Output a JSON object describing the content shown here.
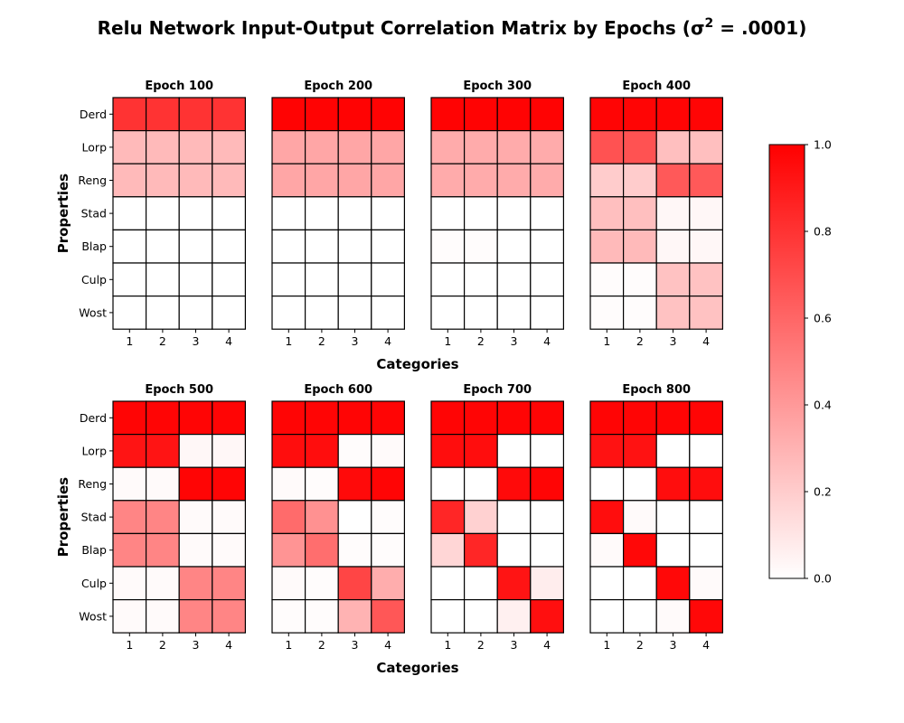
{
  "title": {
    "main": "Relu Network Input-Output Correlation Matrix by Epochs (σ",
    "sup": "2",
    "tail": " = .0001)"
  },
  "chart_data": {
    "type": "heatmap",
    "xlabel": "Categories",
    "ylabel": "Properties",
    "rows": [
      "Derd",
      "Lorp",
      "Reng",
      "Stad",
      "Blap",
      "Culp",
      "Wost"
    ],
    "cols": [
      "1",
      "2",
      "3",
      "4"
    ],
    "colorbar": {
      "range": [
        0,
        1
      ],
      "ticks": [
        "0.0",
        "0.2",
        "0.4",
        "0.6",
        "0.8",
        "1.0"
      ],
      "low_color": "#ffffff",
      "high_color": "#ff0000"
    },
    "panels": [
      {
        "title": "Epoch 100",
        "values": [
          [
            0.8,
            0.8,
            0.8,
            0.8
          ],
          [
            0.27,
            0.27,
            0.27,
            0.27
          ],
          [
            0.27,
            0.27,
            0.27,
            0.27
          ],
          [
            0,
            0,
            0,
            0
          ],
          [
            0,
            0,
            0,
            0
          ],
          [
            0,
            0,
            0,
            0
          ],
          [
            0,
            0,
            0,
            0
          ]
        ]
      },
      {
        "title": "Epoch 200",
        "values": [
          [
            0.99,
            0.99,
            0.99,
            0.99
          ],
          [
            0.35,
            0.35,
            0.35,
            0.35
          ],
          [
            0.35,
            0.35,
            0.35,
            0.35
          ],
          [
            0,
            0,
            0,
            0
          ],
          [
            0,
            0,
            0,
            0
          ],
          [
            0,
            0,
            0,
            0
          ],
          [
            0,
            0,
            0,
            0
          ]
        ]
      },
      {
        "title": "Epoch 300",
        "values": [
          [
            0.99,
            0.99,
            0.99,
            0.99
          ],
          [
            0.33,
            0.33,
            0.33,
            0.33
          ],
          [
            0.33,
            0.33,
            0.33,
            0.33
          ],
          [
            0,
            0,
            0,
            0
          ],
          [
            0.01,
            0.01,
            0,
            0
          ],
          [
            0,
            0,
            0,
            0
          ],
          [
            0,
            0,
            0,
            0
          ]
        ]
      },
      {
        "title": "Epoch 400",
        "values": [
          [
            0.98,
            0.98,
            0.98,
            0.98
          ],
          [
            0.68,
            0.68,
            0.25,
            0.25
          ],
          [
            0.2,
            0.2,
            0.65,
            0.65
          ],
          [
            0.25,
            0.25,
            0.03,
            0.03
          ],
          [
            0.27,
            0.27,
            0.03,
            0.03
          ],
          [
            0.01,
            0.01,
            0.24,
            0.24
          ],
          [
            0.01,
            0.01,
            0.24,
            0.24
          ]
        ]
      },
      {
        "title": "Epoch 500",
        "values": [
          [
            0.98,
            0.98,
            0.98,
            0.98
          ],
          [
            0.92,
            0.92,
            0.03,
            0.03
          ],
          [
            0.02,
            0.02,
            0.98,
            0.98
          ],
          [
            0.48,
            0.48,
            0.02,
            0.02
          ],
          [
            0.48,
            0.48,
            0.02,
            0.02
          ],
          [
            0.02,
            0.02,
            0.48,
            0.48
          ],
          [
            0.02,
            0.02,
            0.48,
            0.48
          ]
        ]
      },
      {
        "title": "Epoch 600",
        "values": [
          [
            0.98,
            0.98,
            0.98,
            0.98
          ],
          [
            0.95,
            0.95,
            0.01,
            0.02
          ],
          [
            0.02,
            0.01,
            0.96,
            0.98
          ],
          [
            0.58,
            0.43,
            0,
            0.01
          ],
          [
            0.42,
            0.57,
            0.01,
            0.01
          ],
          [
            0.02,
            0.01,
            0.73,
            0.32
          ],
          [
            0.01,
            0.01,
            0.3,
            0.66
          ]
        ]
      },
      {
        "title": "Epoch 700",
        "values": [
          [
            0.98,
            0.98,
            0.98,
            0.98
          ],
          [
            0.95,
            0.95,
            0,
            0
          ],
          [
            0,
            0,
            0.96,
            0.98
          ],
          [
            0.85,
            0.18,
            0,
            0
          ],
          [
            0.16,
            0.85,
            0,
            0
          ],
          [
            0,
            0,
            0.92,
            0.07
          ],
          [
            0,
            0,
            0.06,
            0.94
          ]
        ]
      },
      {
        "title": "Epoch 800",
        "values": [
          [
            0.98,
            0.98,
            0.98,
            0.98
          ],
          [
            0.93,
            0.93,
            0,
            0
          ],
          [
            0,
            0,
            0.95,
            0.95
          ],
          [
            0.95,
            0.02,
            0,
            0
          ],
          [
            0.02,
            0.97,
            0,
            0
          ],
          [
            0,
            0,
            0.97,
            0.02
          ],
          [
            0,
            0,
            0.02,
            0.97
          ]
        ]
      }
    ]
  }
}
